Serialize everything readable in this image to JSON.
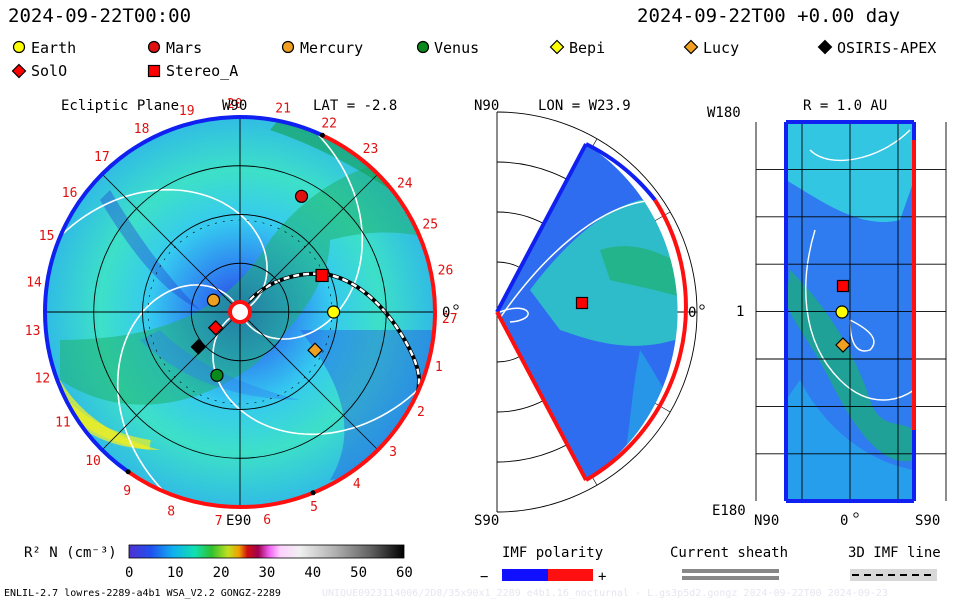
{
  "header": {
    "time_left": "2024-09-22T00:00",
    "time_right": "2024-09-22T00 +0.00 day"
  },
  "legend": [
    {
      "name": "Earth",
      "marker": "circle",
      "color": "#ffff00"
    },
    {
      "name": "Mars",
      "marker": "circle",
      "color": "#e01010"
    },
    {
      "name": "Mercury",
      "marker": "circle",
      "color": "#f0a020"
    },
    {
      "name": "Venus",
      "marker": "circle",
      "color": "#0a8a1a"
    },
    {
      "name": "Bepi",
      "marker": "diamond",
      "color": "#ffff00"
    },
    {
      "name": "Lucy",
      "marker": "diamond",
      "color": "#f0a020"
    },
    {
      "name": "OSIRIS-APEX",
      "marker": "diamond",
      "color": "#000000"
    },
    {
      "name": "SolO",
      "marker": "diamond",
      "color": "#ff0000"
    },
    {
      "name": "Stereo_A",
      "marker": "square",
      "color": "#ff0000"
    }
  ],
  "panels": {
    "ecliptic": {
      "title": "Ecliptic Plane",
      "top_label": "W90",
      "bottom_label": "E90",
      "right_label": "0",
      "lat": "LAT = -2.8",
      "carrington_ticks": [
        "19",
        "20",
        "21",
        "22",
        "23",
        "24",
        "25",
        "26",
        "27",
        "1",
        "2",
        "3",
        "4",
        "5",
        "6",
        "7",
        "8",
        "9",
        "10",
        "11",
        "12",
        "13",
        "14",
        "15",
        "16",
        "17",
        "18"
      ]
    },
    "meridional": {
      "top_label": "N90",
      "bottom_label": "S90",
      "right_label": "0",
      "lon": "LON = W23.9"
    },
    "radial": {
      "title": "R = 1.0 AU",
      "top_label": "W180",
      "bottom_label": "E180",
      "left_label": "1",
      "x_labels": [
        "N90",
        "0",
        "S90"
      ]
    }
  },
  "chart_data": {
    "type": "heatmap",
    "colorbar": {
      "label": "R² N (cm⁻³)",
      "ticks": [
        0,
        10,
        20,
        30,
        40,
        50,
        60
      ],
      "range": [
        0,
        60
      ]
    },
    "bodies_ecliptic": [
      {
        "name": "Earth",
        "r_au": 1.0,
        "lon_deg": 0
      },
      {
        "name": "Mars",
        "r_au": 1.4,
        "lon_deg": 62
      },
      {
        "name": "Stereo_A",
        "r_au": 0.96,
        "lon_deg": 24
      },
      {
        "name": "Mercury",
        "r_au": 0.31,
        "lon_deg": 156
      },
      {
        "name": "SolO",
        "r_au": 0.31,
        "lon_deg": 213
      },
      {
        "name": "OSIRIS-APEX",
        "r_au": 0.58,
        "lon_deg": 220
      },
      {
        "name": "Venus",
        "r_au": 0.72,
        "lon_deg": 250
      },
      {
        "name": "Lucy",
        "r_au": 0.9,
        "lon_deg": -27
      }
    ]
  },
  "bottom": {
    "imf_polarity": "IMF polarity",
    "minus": "−",
    "plus": "+",
    "current_sheath": "Current sheath",
    "imf_line": "3D IMF line",
    "footer": "ENLIL-2.7 lowres-2289-a4b1 WSA_V2.2 GONGZ-2289",
    "footer_faint": "UNIQUE0923114006/2D8/35x90x1_2289 e4b1.16_nocturnal - L.gs3p5d2.gongz 2024-09-22T00  2024-09-23"
  }
}
